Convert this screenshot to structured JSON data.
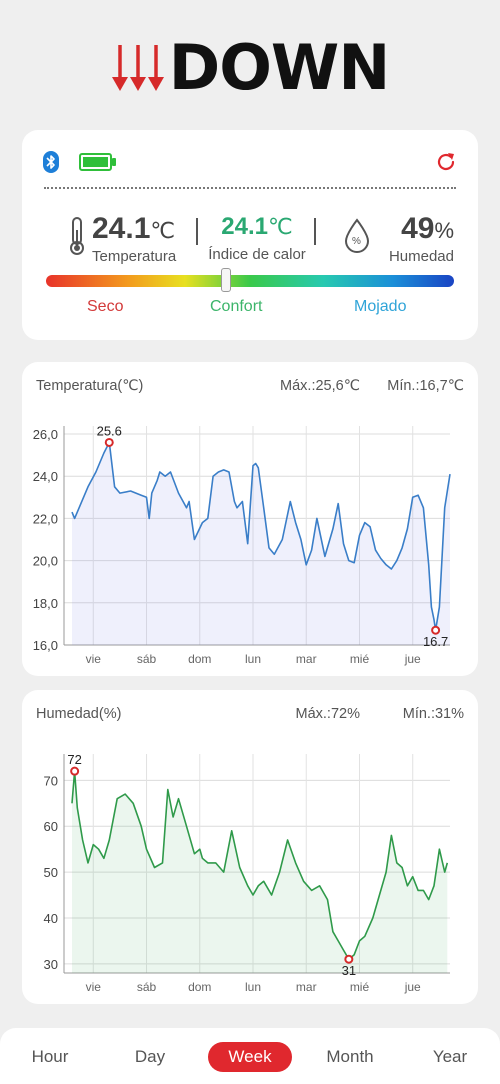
{
  "app": {
    "logo_text": "DOWN"
  },
  "status": {
    "temperature": {
      "value": "24.1",
      "unit": "℃",
      "label": "Temperatura"
    },
    "heat_index": {
      "value": "24.1",
      "unit": "℃",
      "label": "Índice de calor"
    },
    "humidity": {
      "value": "49",
      "unit": "%",
      "label": "Humedad",
      "icon_text": "%"
    },
    "comfort_scale": {
      "dry": "Seco",
      "comfort": "Confort",
      "wet": "Mojado",
      "level": 0.44
    },
    "icons": [
      "bluetooth-icon",
      "battery-icon",
      "refresh-icon",
      "thermometer-icon",
      "water-drop-icon"
    ]
  },
  "colors": {
    "accent": "#e0282e",
    "comfort_green": "#2aa872",
    "temp_line": "#3a7ec8",
    "hum_line": "#2f9a4a",
    "dry": "#d33a3a",
    "comfort": "#3cb56a",
    "wet": "#2fa4d8"
  },
  "chart_data": [
    {
      "type": "area",
      "title": "Temperatura(℃)",
      "max_label": "Máx.:25,6℃",
      "min_label": "Mín.:16,7℃",
      "categories": [
        "vie",
        "sáb",
        "dom",
        "lun",
        "mar",
        "mié",
        "jue"
      ],
      "y_ticks": [
        "16,0",
        "18,0",
        "20,0",
        "22,0",
        "24,0",
        "26,0"
      ],
      "ylim": [
        16,
        26
      ],
      "grid": true,
      "max_point": {
        "x": 0.3,
        "y": 25.6,
        "label": "25.6"
      },
      "min_point": {
        "x": 6.43,
        "y": 16.7,
        "label": "16.7"
      },
      "series": [
        {
          "x": [
            -0.4,
            -0.35,
            -0.25,
            -0.1,
            0.05,
            0.2,
            0.3,
            0.4,
            0.5,
            0.7,
            0.9,
            1.0,
            1.05,
            1.1,
            1.2,
            1.25,
            1.35,
            1.45,
            1.6,
            1.75,
            1.8,
            1.9,
            2.05,
            2.15,
            2.25,
            2.35,
            2.45,
            2.55,
            2.65,
            2.7,
            2.8,
            2.9,
            3.0,
            3.05,
            3.1,
            3.2,
            3.3,
            3.4,
            3.55,
            3.7,
            3.8,
            3.9,
            4.0,
            4.1,
            4.2,
            4.35,
            4.5,
            4.6,
            4.7,
            4.8,
            4.9,
            5.0,
            5.1,
            5.2,
            5.3,
            5.4,
            5.5,
            5.6,
            5.7,
            5.8,
            5.9,
            6.0,
            6.1,
            6.2,
            6.3,
            6.35,
            6.4,
            6.43,
            6.5,
            6.6,
            6.7
          ],
          "values": [
            22.3,
            22.0,
            22.6,
            23.5,
            24.2,
            25.1,
            25.6,
            23.5,
            23.2,
            23.3,
            23.1,
            23.0,
            22.0,
            23.2,
            23.8,
            24.2,
            24.0,
            24.2,
            23.2,
            22.5,
            22.8,
            21.0,
            21.8,
            22.0,
            24.0,
            24.2,
            24.3,
            24.2,
            22.8,
            22.5,
            22.8,
            20.8,
            24.5,
            24.6,
            24.4,
            22.5,
            20.6,
            20.3,
            21.0,
            22.8,
            21.8,
            21.0,
            19.8,
            20.5,
            22.0,
            20.2,
            21.5,
            22.7,
            20.8,
            20.0,
            19.9,
            21.2,
            21.8,
            21.6,
            20.5,
            20.1,
            19.8,
            19.6,
            20.0,
            20.6,
            21.5,
            23.0,
            23.1,
            22.5,
            19.8,
            17.8,
            17.2,
            16.7,
            17.8,
            22.5,
            24.1
          ]
        }
      ]
    },
    {
      "type": "area",
      "title": "Humedad(%)",
      "max_label": "Máx.:72%",
      "min_label": "Mín.:31%",
      "categories": [
        "vie",
        "sáb",
        "dom",
        "lun",
        "mar",
        "mié",
        "jue"
      ],
      "y_ticks": [
        "30",
        "40",
        "50",
        "60",
        "70"
      ],
      "ylim": [
        28,
        74
      ],
      "grid": true,
      "max_point": {
        "x": -0.35,
        "y": 72,
        "label": "72"
      },
      "min_point": {
        "x": 4.8,
        "y": 31,
        "label": "31"
      },
      "series": [
        {
          "x": [
            -0.4,
            -0.35,
            -0.3,
            -0.2,
            -0.1,
            0.0,
            0.1,
            0.2,
            0.3,
            0.45,
            0.6,
            0.75,
            0.9,
            1.0,
            1.15,
            1.3,
            1.4,
            1.5,
            1.6,
            1.75,
            1.9,
            2.0,
            2.05,
            2.15,
            2.3,
            2.45,
            2.6,
            2.75,
            2.9,
            3.0,
            3.1,
            3.2,
            3.35,
            3.5,
            3.65,
            3.8,
            3.95,
            4.1,
            4.25,
            4.4,
            4.5,
            4.6,
            4.7,
            4.8,
            4.9,
            5.0,
            5.1,
            5.25,
            5.4,
            5.5,
            5.6,
            5.7,
            5.8,
            5.9,
            6.0,
            6.1,
            6.2,
            6.3,
            6.4,
            6.5,
            6.6,
            6.65
          ],
          "values": [
            65,
            72,
            64,
            57,
            52,
            56,
            55,
            53,
            57,
            66,
            67,
            65,
            60,
            55,
            51,
            52,
            68,
            62,
            66,
            60,
            54,
            55,
            53,
            52,
            52,
            50,
            59,
            51,
            47,
            45,
            47,
            48,
            45,
            50,
            57,
            52,
            48,
            46,
            47,
            44,
            37,
            35,
            33,
            31,
            32,
            35,
            36,
            40,
            46,
            50,
            58,
            52,
            51,
            47,
            49,
            46,
            46,
            44,
            47,
            55,
            50,
            52
          ]
        }
      ]
    }
  ],
  "tabs": [
    {
      "label": "Hour",
      "active": false
    },
    {
      "label": "Day",
      "active": false
    },
    {
      "label": "Week",
      "active": true
    },
    {
      "label": "Month",
      "active": false
    },
    {
      "label": "Year",
      "active": false
    }
  ]
}
